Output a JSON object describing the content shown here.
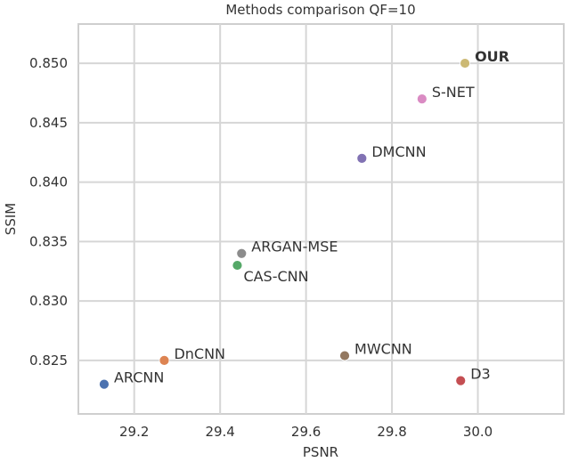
{
  "chart_data": {
    "type": "scatter",
    "title": "Methods comparison QF=10",
    "xlabel": "PSNR",
    "ylabel": "SSIM",
    "xlim": [
      29.07,
      30.2
    ],
    "ylim": [
      0.8205,
      0.8533
    ],
    "x_ticks": [
      "29.2",
      "29.4",
      "29.6",
      "29.8",
      "30.0"
    ],
    "y_ticks": [
      "0.825",
      "0.830",
      "0.835",
      "0.840",
      "0.845",
      "0.850"
    ],
    "grid": true,
    "points": [
      {
        "name": "ARCNN",
        "x": 29.13,
        "y": 0.823,
        "color": "#4c72b0",
        "bold": false,
        "label_pos": "right"
      },
      {
        "name": "DnCNN",
        "x": 29.27,
        "y": 0.825,
        "color": "#dd8452",
        "bold": false,
        "label_pos": "right"
      },
      {
        "name": "CAS-CNN",
        "x": 29.44,
        "y": 0.833,
        "color": "#55a868",
        "bold": false,
        "label_pos": "below"
      },
      {
        "name": "ARGAN-MSE",
        "x": 29.45,
        "y": 0.834,
        "color": "#8c8c8c",
        "bold": false,
        "label_pos": "right"
      },
      {
        "name": "MWCNN",
        "x": 29.69,
        "y": 0.8254,
        "color": "#937860",
        "bold": false,
        "label_pos": "right"
      },
      {
        "name": "DMCNN",
        "x": 29.73,
        "y": 0.842,
        "color": "#8172b3",
        "bold": false,
        "label_pos": "right"
      },
      {
        "name": "S-NET",
        "x": 29.87,
        "y": 0.847,
        "color": "#da8bc3",
        "bold": false,
        "label_pos": "right"
      },
      {
        "name": "D3",
        "x": 29.96,
        "y": 0.8233,
        "color": "#c44e52",
        "bold": false,
        "label_pos": "right"
      },
      {
        "name": "OUR",
        "x": 29.97,
        "y": 0.85,
        "color": "#ccb974",
        "bold": true,
        "label_pos": "right"
      }
    ]
  }
}
